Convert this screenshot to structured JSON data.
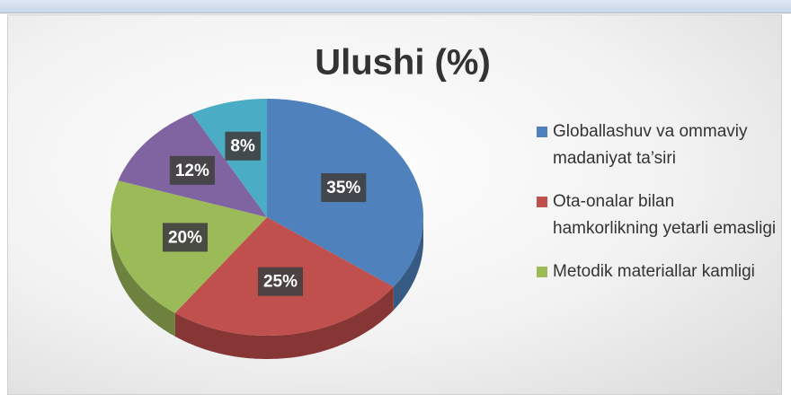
{
  "chart_data": {
    "type": "pie",
    "title": "Ulushi (%)",
    "categories": [
      "Globallashuv va ommaviy madaniyat ta’siri",
      "Ota-onalar bilan hamkorlikning yetarli emasligi",
      "Metodik materiallar kamligi",
      null,
      null
    ],
    "values": [
      35,
      25,
      20,
      12,
      8
    ],
    "value_labels": [
      "35%",
      "25%",
      "20%",
      "12%",
      "8%"
    ],
    "colors": [
      "#4f81bd",
      "#c0504d",
      "#9bbb59",
      "#8064a2",
      "#4bacc6"
    ],
    "legend": "right"
  }
}
